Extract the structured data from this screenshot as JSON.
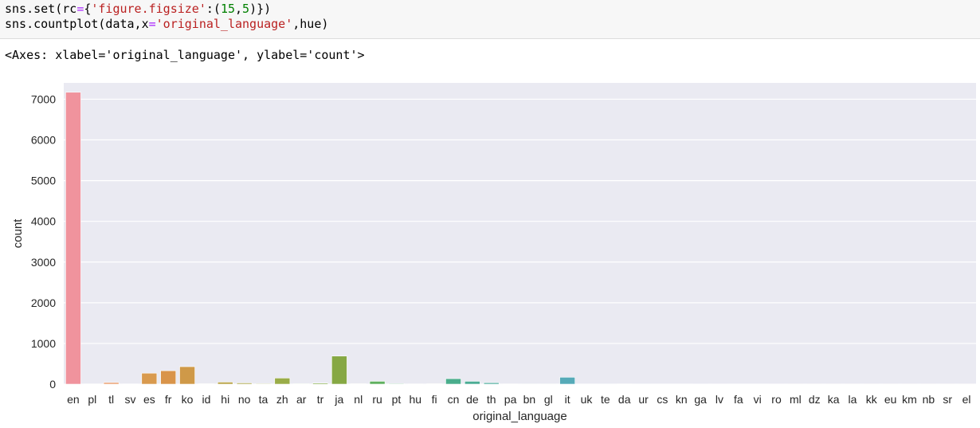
{
  "notebook": {
    "code_lines": [
      [
        {
          "t": "sns.set(rc",
          "c": ""
        },
        {
          "t": "=",
          "c": "op"
        },
        {
          "t": "{",
          "c": ""
        },
        {
          "t": "'figure.figsize'",
          "c": "str"
        },
        {
          "t": ":(",
          "c": ""
        },
        {
          "t": "15",
          "c": "num"
        },
        {
          "t": ",",
          "c": ""
        },
        {
          "t": "5",
          "c": "num"
        },
        {
          "t": ")})",
          "c": ""
        }
      ],
      [
        {
          "t": "sns.countplot(data,x",
          "c": ""
        },
        {
          "t": "=",
          "c": "op"
        },
        {
          "t": "'original_language'",
          "c": "str"
        },
        {
          "t": ",hue)",
          "c": ""
        }
      ]
    ],
    "output_text": "<Axes: xlabel='original_language', ylabel='count'>"
  },
  "chart_data": {
    "type": "bar",
    "xlabel": "original_language",
    "ylabel": "count",
    "ylim": [
      0,
      7400
    ],
    "yticks": [
      0,
      1000,
      2000,
      3000,
      4000,
      5000,
      6000,
      7000
    ],
    "grid": true,
    "background": "#eaeaf2",
    "categories": [
      "en",
      "pl",
      "tl",
      "sv",
      "es",
      "fr",
      "ko",
      "id",
      "hi",
      "no",
      "ta",
      "zh",
      "ar",
      "tr",
      "ja",
      "nl",
      "ru",
      "pt",
      "hu",
      "fi",
      "cn",
      "de",
      "th",
      "pa",
      "bn",
      "gl",
      "it",
      "uk",
      "te",
      "da",
      "ur",
      "cs",
      "kn",
      "ga",
      "lv",
      "fa",
      "vi",
      "ro",
      "ml",
      "dz",
      "ka",
      "la",
      "kk",
      "eu",
      "km",
      "nb",
      "sr",
      "el"
    ],
    "values": [
      7170,
      5,
      40,
      6,
      270,
      330,
      430,
      10,
      50,
      30,
      15,
      150,
      12,
      25,
      690,
      10,
      70,
      15,
      5,
      10,
      135,
      70,
      35,
      5,
      3,
      3,
      170,
      4,
      3,
      5,
      3,
      4,
      3,
      2,
      2,
      3,
      3,
      2,
      2,
      2,
      2,
      2,
      2,
      2,
      2,
      2,
      2,
      2
    ],
    "colors": [
      "#f0939d",
      "#f29882",
      "#ea9e6e",
      "#e5a060",
      "#d99a4e",
      "#d9944a",
      "#cf9948",
      "#c49e48",
      "#b9a448",
      "#aea950",
      "#a1aa4c",
      "#9aac48",
      "#90ad48",
      "#86ad48",
      "#86a844",
      "#72ac5b",
      "#5fb05f",
      "#52b06a",
      "#4cae76",
      "#4aae82",
      "#4aad8c",
      "#4bac94",
      "#4dac9d",
      "#4faca5",
      "#52abac",
      "#54aab6",
      "#56aab8",
      "#58a8c0",
      "#5ba6c8",
      "#62a3d0",
      "#6aa0d8",
      "#76a0de",
      "#849fe0",
      "#949ce0",
      "#a39be0",
      "#b196dc",
      "#be92d8",
      "#ca8ed2",
      "#d48ccb",
      "#dc8bc4",
      "#e38cbc",
      "#e88db4",
      "#ec8eac",
      "#ee8fa5",
      "#ef90a0",
      "#f0919e",
      "#f0929d",
      "#f0939d"
    ]
  }
}
